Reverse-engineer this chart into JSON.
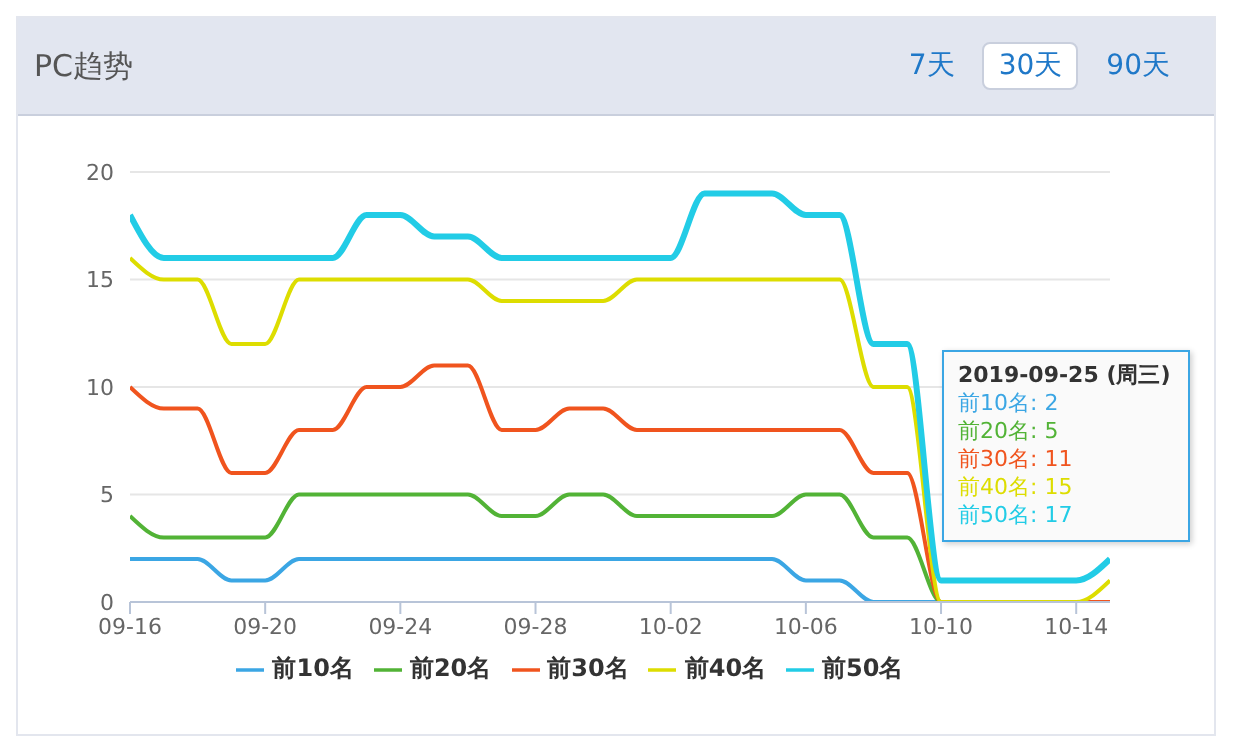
{
  "chart_data": {
    "type": "line",
    "title": "PC趋势",
    "x": [
      "--09-16",
      "--09-17",
      "--09-18",
      "--09-19",
      "--09-20",
      "--09-21",
      "--09-22",
      "--09-23",
      "--09-24",
      "--09-25",
      "--09-26",
      "--09-27",
      "--09-28",
      "--09-29",
      "--09-30",
      "--10-01",
      "--10-02",
      "--10-03",
      "--10-04",
      "--10-05",
      "--10-06",
      "--10-07",
      "--10-08",
      "--10-09",
      "--10-10",
      "--10-11",
      "--10-12",
      "--10-13",
      "--10-14",
      "--10-15"
    ],
    "series": [
      {
        "name": "前10名",
        "color": "#3ba6e4",
        "values": [
          2,
          2,
          2,
          1,
          1,
          2,
          2,
          2,
          2,
          2,
          2,
          2,
          2,
          2,
          2,
          2,
          2,
          2,
          2,
          2,
          1,
          1,
          0,
          0,
          0,
          0,
          null,
          null,
          null,
          null
        ]
      },
      {
        "name": "前20名",
        "color": "#52b336",
        "values": [
          4,
          3,
          3,
          3,
          3,
          5,
          5,
          5,
          5,
          5,
          5,
          4,
          4,
          5,
          5,
          4,
          4,
          4,
          4,
          4,
          5,
          5,
          3,
          3,
          0,
          0,
          null,
          null,
          null,
          null
        ]
      },
      {
        "name": "前30名",
        "color": "#f0541e",
        "values": [
          10,
          9,
          9,
          6,
          6,
          8,
          8,
          10,
          10,
          11,
          11,
          8,
          8,
          9,
          9,
          8,
          8,
          8,
          8,
          8,
          8,
          8,
          6,
          6,
          0,
          0,
          0,
          0,
          0,
          0
        ]
      },
      {
        "name": "前40名",
        "color": "#dddd00",
        "values": [
          16,
          15,
          15,
          12,
          12,
          15,
          15,
          15,
          15,
          15,
          15,
          14,
          14,
          14,
          14,
          15,
          15,
          15,
          15,
          15,
          15,
          15,
          10,
          10,
          0,
          0,
          0,
          0,
          0,
          1
        ]
      },
      {
        "name": "前50名",
        "color": "#22cce6",
        "values": [
          18,
          16,
          16,
          16,
          16,
          16,
          16,
          18,
          18,
          17,
          17,
          16,
          16,
          16,
          16,
          16,
          16,
          19,
          19,
          19,
          18,
          18,
          12,
          12,
          1,
          1,
          1,
          1,
          1,
          2
        ]
      }
    ],
    "xlim": [
      "--09-16",
      "--10-15"
    ],
    "xticks": [
      {
        "value": "--09-16",
        "label": "09-16"
      },
      {
        "value": "--09-20",
        "label": "09-20"
      },
      {
        "value": "--09-24",
        "label": "09-24"
      },
      {
        "value": "--09-28",
        "label": "09-28"
      },
      {
        "value": "--10-02",
        "label": "10-02"
      },
      {
        "value": "--10-06",
        "label": "10-06"
      },
      {
        "value": "--10-10",
        "label": "10-10"
      },
      {
        "value": "--10-14",
        "label": "10-14"
      }
    ],
    "ylim": [
      0,
      20
    ],
    "yticks": [
      0,
      5,
      10,
      15,
      20
    ],
    "grid": "y",
    "legend": "bottom",
    "marker": "none",
    "line_style": "solid",
    "annotations": [
      "7天",
      "30天",
      "90天",
      "2019-09-25 (周三)",
      "前10名: 2",
      "前20名: 5",
      "前30名: 11",
      "前40名: 15",
      "前50名: 17"
    ]
  }
}
